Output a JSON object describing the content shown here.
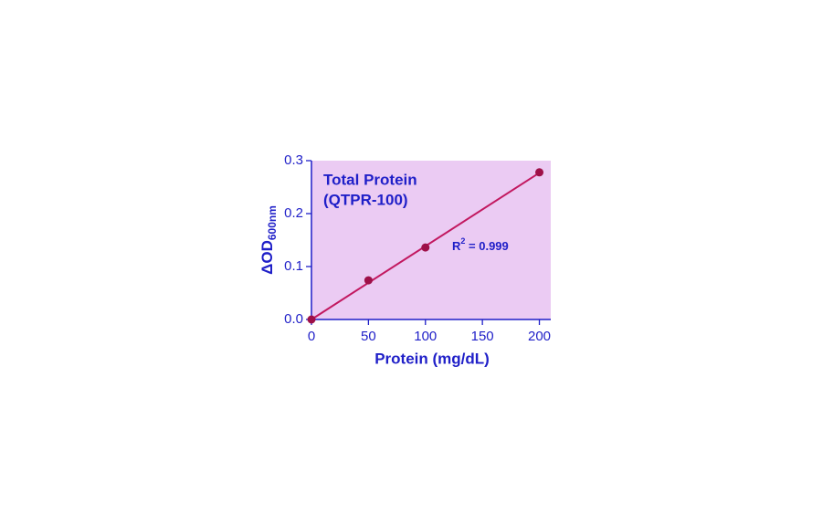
{
  "chart_data": {
    "type": "scatter",
    "title": [
      "Total Protein",
      "(QTPR-100)"
    ],
    "xlabel": "Protein (mg/dL)",
    "ylabel": {
      "main": "ΔOD",
      "sub": "600nm"
    },
    "annotation": {
      "main": "R",
      "sup": "2",
      "rest": " = 0.999"
    },
    "series": [
      {
        "color": "#9e1048",
        "x": [
          0,
          50,
          100,
          200
        ],
        "values": [
          0,
          0.074,
          0.136,
          0.278
        ]
      }
    ],
    "fit_line": {
      "color": "#c2185f",
      "x": [
        0,
        200
      ],
      "values": [
        0,
        0.277
      ]
    },
    "xlim": [
      0,
      210
    ],
    "xticks": [
      0,
      50,
      100,
      150,
      200
    ],
    "ylim": [
      0,
      0.3
    ],
    "yticks": [
      {
        "value": 0,
        "label": "0.0"
      },
      0.1,
      0.2,
      0.3
    ],
    "plot_background": "#ebcbf3",
    "text_color": "#1f1fc8"
  }
}
